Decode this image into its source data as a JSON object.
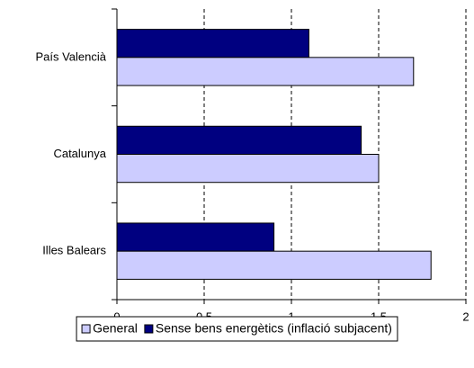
{
  "chart_data": {
    "type": "bar",
    "orientation": "horizontal",
    "categories": [
      "País Valencià",
      "Catalunya",
      "Illes Balears"
    ],
    "series": [
      {
        "name": "General",
        "color": "#ccccff",
        "values": [
          1.7,
          1.5,
          1.8
        ]
      },
      {
        "name": "Sense bens energètics (inflació subjacent)",
        "color": "#000080",
        "values": [
          1.1,
          1.4,
          0.9
        ]
      }
    ],
    "xlim": [
      0,
      2
    ],
    "xticks": [
      0,
      {
        "value": 0.5,
        "label": "0,5"
      },
      1,
      {
        "value": 1.5,
        "label": "1,5"
      },
      2
    ],
    "grid": true,
    "grid_style": "dashed",
    "legend": "bottom"
  }
}
